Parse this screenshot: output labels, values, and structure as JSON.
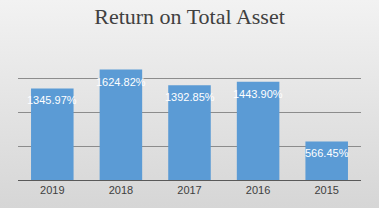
{
  "chart_data": {
    "type": "bar",
    "title": "Return on Total Asset",
    "categories": [
      "2019",
      "2018",
      "2017",
      "2016",
      "2015"
    ],
    "values": [
      1345.97,
      1624.82,
      1392.85,
      1443.9,
      566.45
    ],
    "value_labels": [
      "1345.97%",
      "1624.82%",
      "1392.85%",
      "1443.90%",
      "566.45%"
    ],
    "color": "#5b9bd5",
    "ylim": [
      0,
      2000
    ],
    "yticks": [
      0,
      500,
      1000,
      1500,
      2000
    ],
    "grid": true,
    "data_labels": true,
    "tick_labels": "x"
  }
}
